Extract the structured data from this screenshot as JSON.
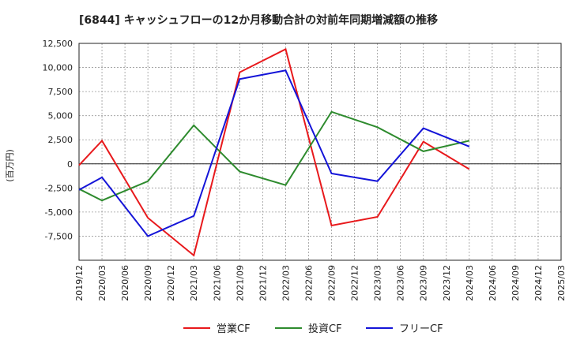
{
  "chart_data": {
    "type": "line",
    "title": "[6844]  キャッシュフローの12か月移動合計の対前年同期増減額の推移",
    "ylabel": "(百万円)",
    "xlabel": "",
    "ylim": [
      -10000,
      12500
    ],
    "yticks": [
      12500,
      10000,
      7500,
      5000,
      2500,
      0,
      -2500,
      -5000,
      -7500
    ],
    "ytick_labels": [
      "12,500",
      "10,000",
      "7,500",
      "5,000",
      "2,500",
      "0",
      "-2,500",
      "-5,000",
      "-7,500"
    ],
    "categories": [
      "2019/12",
      "2020/03",
      "2020/06",
      "2020/09",
      "2020/12",
      "2021/03",
      "2021/06",
      "2021/09",
      "2021/12",
      "2022/03",
      "2022/06",
      "2022/09",
      "2022/12",
      "2023/03",
      "2023/06",
      "2023/09",
      "2023/12",
      "2024/03",
      "2024/06",
      "2024/09",
      "2024/12",
      "2025/03"
    ],
    "grid": true,
    "series": [
      {
        "name": "営業CF",
        "color": "#e8191c",
        "values": [
          -150,
          2400,
          null,
          -5600,
          null,
          -9500,
          null,
          9500,
          null,
          11900,
          null,
          -6400,
          null,
          -5500,
          null,
          2300,
          null,
          -550,
          null,
          null,
          null,
          null
        ]
      },
      {
        "name": "投資CF",
        "color": "#2e8b2e",
        "values": [
          -2600,
          -3800,
          null,
          -1800,
          null,
          4000,
          null,
          -800,
          null,
          -2200,
          null,
          5400,
          null,
          3800,
          null,
          1300,
          null,
          2400,
          null,
          null,
          null,
          null
        ]
      },
      {
        "name": "フリーCF",
        "color": "#1414d8",
        "values": [
          -2700,
          -1400,
          null,
          -7500,
          null,
          -5400,
          null,
          8800,
          null,
          9700,
          null,
          -1000,
          null,
          -1800,
          null,
          3700,
          null,
          1800,
          null,
          null,
          null,
          null
        ]
      }
    ]
  }
}
